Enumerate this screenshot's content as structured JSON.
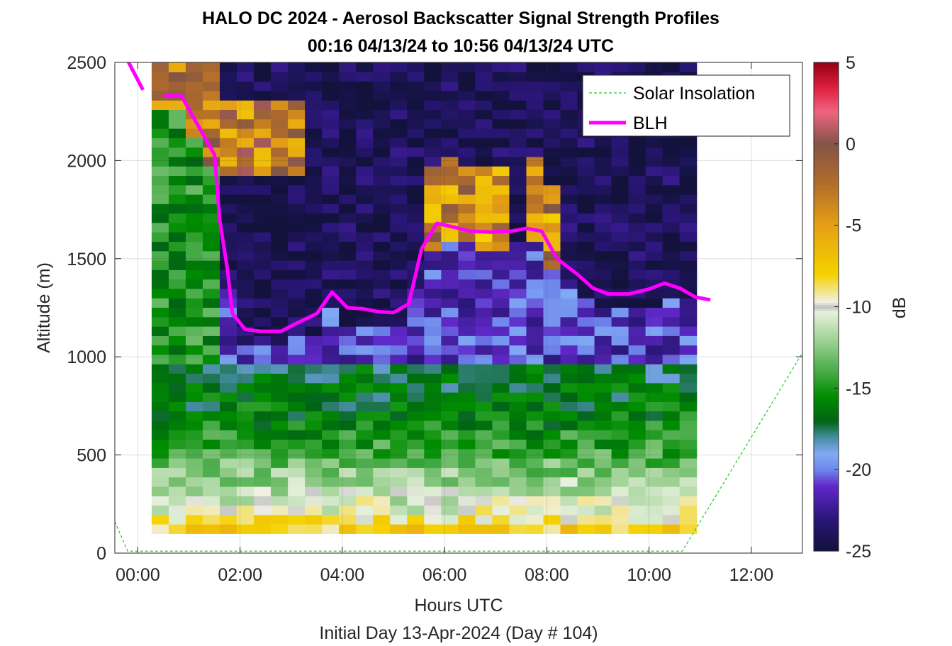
{
  "chart_data": {
    "type": "heatmap",
    "title": "HALO DC 2024 - Aerosol Backscatter Signal Strength Profiles",
    "subtitle": "00:16 04/13/24 to 10:56 04/13/24  UTC",
    "xlabel": "Hours UTC",
    "xlabel2": "Initial Day 13-Apr-2024 (Day # 104)",
    "ylabel": "Altitude (m)",
    "colorbar_label": "dB",
    "xlim": [
      -0.45,
      13.0
    ],
    "ylim": [
      0,
      2500
    ],
    "x_ticks": [
      0,
      2,
      4,
      6,
      8,
      10,
      12
    ],
    "x_tick_labels": [
      "00:00",
      "02:00",
      "04:00",
      "06:00",
      "08:00",
      "10:00",
      "12:00"
    ],
    "y_ticks": [
      0,
      500,
      1000,
      1500,
      2000,
      2500
    ],
    "y_tick_labels": [
      "0",
      "500",
      "1000",
      "1500",
      "2000",
      "2500"
    ],
    "clim": [
      -25,
      5
    ],
    "colorbar_ticks": [
      5,
      0,
      -5,
      -10,
      -15,
      -20,
      -25
    ],
    "colorbar_tick_labels": [
      "5",
      "0",
      "-5",
      "-10",
      "-15",
      "-20",
      "-25"
    ],
    "grid": true,
    "legend_position": "top-right",
    "legend": [
      {
        "name": "Solar Insolation",
        "color": "#22cc22",
        "style": "dashed"
      },
      {
        "name": "BLH",
        "color": "#ff00ff",
        "style": "solid"
      }
    ],
    "heatmap": {
      "time_start": 0.27,
      "time_end": 10.93,
      "alt_bottom": 100,
      "alt_top": 2500,
      "n_time": 32,
      "n_alt": 50,
      "low_layer_dB_by_altitude": [
        {
          "alt": 100,
          "dB": -7
        },
        {
          "alt": 200,
          "dB": -10
        },
        {
          "alt": 300,
          "dB": -11
        },
        {
          "alt": 500,
          "dB": -14
        },
        {
          "alt": 700,
          "dB": -16
        },
        {
          "alt": 900,
          "dB": -17
        }
      ],
      "residual_layer_dB": -2,
      "free_troposphere_dB": -24
    },
    "series": [
      {
        "name": "BLH",
        "color": "#ff00ff",
        "x": [
          -0.2,
          0.1,
          0.5,
          0.85,
          1.5,
          1.6,
          1.75,
          1.85,
          2.1,
          2.4,
          2.8,
          3.1,
          3.5,
          3.8,
          4.1,
          4.4,
          4.7,
          5.0,
          5.3,
          5.55,
          5.85,
          6.2,
          6.5,
          6.9,
          7.3,
          7.6,
          7.9,
          8.2,
          8.6,
          8.9,
          9.2,
          9.6,
          10.0,
          10.3,
          10.6,
          10.9,
          11.2
        ],
        "y": [
          2510,
          2360,
          2330,
          2330,
          2030,
          1700,
          1450,
          1220,
          1140,
          1130,
          1130,
          1170,
          1220,
          1330,
          1250,
          1245,
          1230,
          1225,
          1270,
          1550,
          1680,
          1660,
          1640,
          1635,
          1640,
          1655,
          1640,
          1500,
          1420,
          1350,
          1320,
          1320,
          1345,
          1375,
          1350,
          1305,
          1290
        ]
      },
      {
        "name": "Solar Insolation",
        "color": "#22cc22",
        "x": [
          -0.45,
          -0.2,
          0.0,
          10.65,
          13.0
        ],
        "y": [
          160,
          10,
          10,
          10,
          1020
        ]
      }
    ]
  }
}
